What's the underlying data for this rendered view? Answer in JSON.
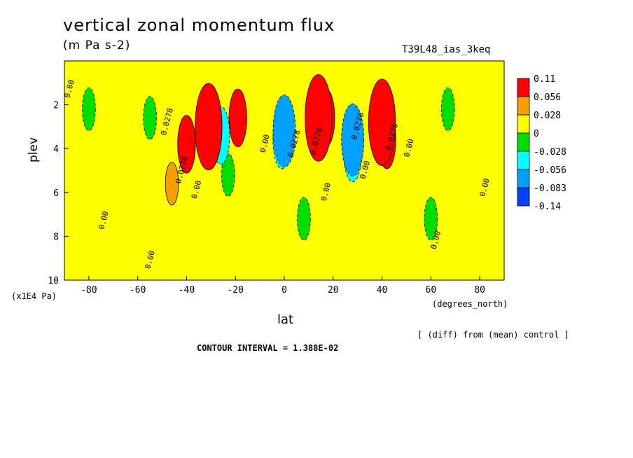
{
  "chart_data": {
    "type": "heatmap",
    "title": "vertical zonal momentum flux",
    "subtitle": "(m Pa s-2)",
    "run_label": "T39L48_ias_3keq",
    "xlabel": "lat",
    "xunit": "(degrees_north)",
    "ylabel": "plev",
    "yunit": "(x1E4 Pa)",
    "xlim": [
      -90,
      90
    ],
    "ylim": [
      10,
      0
    ],
    "xticks": [
      -80,
      -60,
      -40,
      -20,
      0,
      20,
      40,
      60,
      80
    ],
    "yticks": [
      2,
      4,
      6,
      8,
      10
    ],
    "colorbar": {
      "labels": [
        "0.11",
        "0.056",
        "0.028",
        "0",
        "-0.028",
        "-0.056",
        "-0.083",
        "-0.14"
      ],
      "colors": [
        "#ff0000",
        "#f5a000",
        "#ffff00",
        "#00dd00",
        "#00ffff",
        "#00a0ff",
        "#0040ff"
      ]
    },
    "features": [
      {
        "lat": -31,
        "plev": 3.0,
        "value": 0.11
      },
      {
        "lat": -40,
        "plev": 3.8,
        "value": 0.056
      },
      {
        "lat": -46,
        "plev": 5.6,
        "value": 0.028
      },
      {
        "lat": -19,
        "plev": 2.6,
        "value": 0.056
      },
      {
        "lat": -26,
        "plev": 3.4,
        "value": -0.056
      },
      {
        "lat": -23,
        "plev": 5.2,
        "value": -0.028
      },
      {
        "lat": -1,
        "plev": 3.6,
        "value": -0.056
      },
      {
        "lat": 0,
        "plev": 3.2,
        "value": -0.083
      },
      {
        "lat": 14,
        "plev": 2.6,
        "value": 0.11
      },
      {
        "lat": 17,
        "plev": 2.6,
        "value": 0.056
      },
      {
        "lat": 28,
        "plev": 3.6,
        "value": -0.083
      },
      {
        "lat": 28,
        "plev": 4.2,
        "value": -0.056
      },
      {
        "lat": 40,
        "plev": 2.8,
        "value": 0.11
      },
      {
        "lat": 42,
        "plev": 3.6,
        "value": 0.056
      },
      {
        "lat": -80,
        "plev": 2.2,
        "value": -0.028
      },
      {
        "lat": -55,
        "plev": 2.6,
        "value": -0.028
      },
      {
        "lat": 67,
        "plev": 2.2,
        "value": -0.028
      },
      {
        "lat": 60,
        "plev": 7.2,
        "value": -0.028
      },
      {
        "lat": 8,
        "plev": 7.2,
        "value": -0.028
      }
    ],
    "contour_labels": [
      {
        "text": "0.00",
        "lat": -87,
        "plev": 1.3
      },
      {
        "text": "0.0278",
        "lat": -47,
        "plev": 2.8
      },
      {
        "text": "0.0278",
        "lat": -41,
        "plev": 5.0
      },
      {
        "text": "0.00",
        "lat": -35,
        "plev": 5.9
      },
      {
        "text": "0.00",
        "lat": -73,
        "plev": 7.3
      },
      {
        "text": "0.00",
        "lat": -54,
        "plev": 9.1
      },
      {
        "text": "0.00",
        "lat": -7,
        "plev": 3.8
      },
      {
        "text": "0.0278",
        "lat": 5,
        "plev": 3.8
      },
      {
        "text": "0.00",
        "lat": 18,
        "plev": 6.0
      },
      {
        "text": "0.0278",
        "lat": 14,
        "plev": 3.7
      },
      {
        "text": "0.0278",
        "lat": 31,
        "plev": 3.0
      },
      {
        "text": "0.00",
        "lat": 34,
        "plev": 5.0
      },
      {
        "text": "0.0278",
        "lat": 45,
        "plev": 3.5
      },
      {
        "text": "0.00",
        "lat": 52,
        "plev": 4.0
      },
      {
        "text": "0.00",
        "lat": 83,
        "plev": 5.8
      },
      {
        "text": "0.00",
        "lat": 63,
        "plev": 8.2
      }
    ]
  },
  "footer": {
    "diff_note": "[ (diff) from (mean) control ]",
    "contour_interval": "CONTOUR INTERVAL = 1.388E-02"
  }
}
